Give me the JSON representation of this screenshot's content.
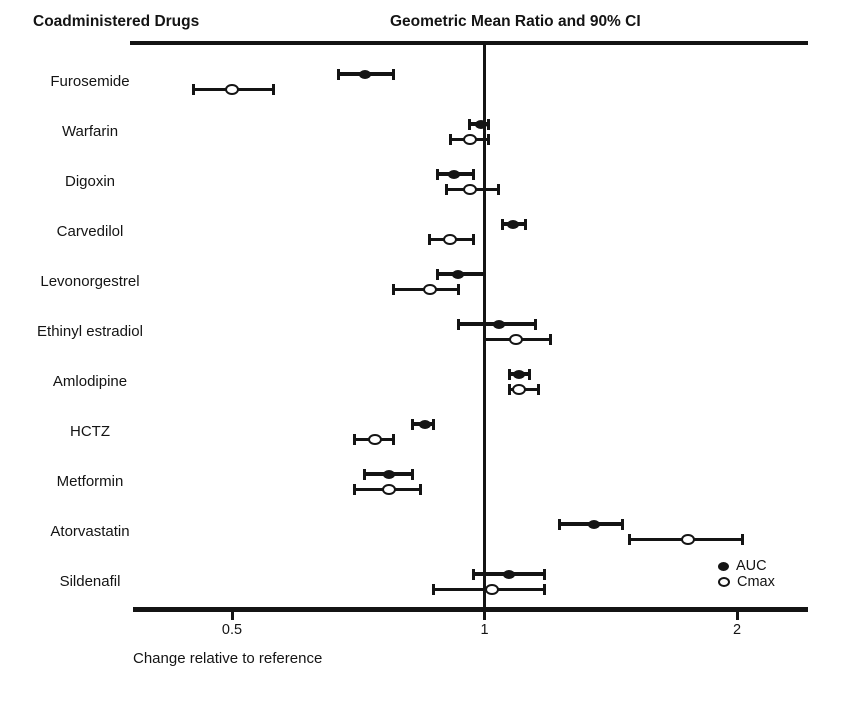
{
  "chart_data": {
    "type": "forest",
    "title_left": "Coadministered Drugs",
    "title_right": "Geometric Mean Ratio and 90% CI",
    "xlabel": "Change relative to reference",
    "x_scale": "log2",
    "x_reference_line": 1,
    "x_ticks": [
      {
        "value": 0.5,
        "label": "0.5"
      },
      {
        "value": 1,
        "label": "1"
      },
      {
        "value": 2,
        "label": "2"
      }
    ],
    "xlim": [
      0.38,
      2.25
    ],
    "grid": false,
    "legend_position": "bottom-right",
    "legend": [
      {
        "label": "AUC",
        "marker": "filled-circle"
      },
      {
        "label": "Cmax",
        "marker": "open-circle"
      }
    ],
    "line_color": "#141414",
    "background_color": "#ffffff",
    "rows": [
      {
        "drug": "Furosemide",
        "auc": {
          "gmr": 0.72,
          "lo": 0.67,
          "hi": 0.78
        },
        "cmax": {
          "gmr": 0.5,
          "lo": 0.45,
          "hi": 0.56
        }
      },
      {
        "drug": "Warfarin",
        "auc": {
          "gmr": 0.99,
          "lo": 0.96,
          "hi": 1.01
        },
        "cmax": {
          "gmr": 0.96,
          "lo": 0.91,
          "hi": 1.01
        }
      },
      {
        "drug": "Digoxin",
        "auc": {
          "gmr": 0.92,
          "lo": 0.88,
          "hi": 0.97
        },
        "cmax": {
          "gmr": 0.96,
          "lo": 0.9,
          "hi": 1.04
        }
      },
      {
        "drug": "Carvedilol",
        "auc": {
          "gmr": 1.08,
          "lo": 1.05,
          "hi": 1.12
        },
        "cmax": {
          "gmr": 0.91,
          "lo": 0.86,
          "hi": 0.97
        }
      },
      {
        "drug": "Levonorgestrel",
        "auc": {
          "gmr": 0.93,
          "lo": 0.88,
          "hi": 1.0
        },
        "cmax": {
          "gmr": 0.86,
          "lo": 0.78,
          "hi": 0.93
        }
      },
      {
        "drug": "Ethinyl estradiol",
        "auc": {
          "gmr": 1.04,
          "lo": 0.93,
          "hi": 1.15
        },
        "cmax": {
          "gmr": 1.09,
          "lo": 1.0,
          "hi": 1.2
        }
      },
      {
        "drug": "Amlodipine",
        "auc": {
          "gmr": 1.1,
          "lo": 1.07,
          "hi": 1.13
        },
        "cmax": {
          "gmr": 1.1,
          "lo": 1.07,
          "hi": 1.16
        }
      },
      {
        "drug": "HCTZ",
        "auc": {
          "gmr": 0.85,
          "lo": 0.82,
          "hi": 0.87
        },
        "cmax": {
          "gmr": 0.74,
          "lo": 0.7,
          "hi": 0.78
        }
      },
      {
        "drug": "Metformin",
        "auc": {
          "gmr": 0.77,
          "lo": 0.72,
          "hi": 0.82
        },
        "cmax": {
          "gmr": 0.77,
          "lo": 0.7,
          "hi": 0.84
        }
      },
      {
        "drug": "Atorvastatin",
        "auc": {
          "gmr": 1.35,
          "lo": 1.23,
          "hi": 1.46
        },
        "cmax": {
          "gmr": 1.75,
          "lo": 1.49,
          "hi": 2.03
        }
      },
      {
        "drug": "Sildenafil",
        "auc": {
          "gmr": 1.07,
          "lo": 0.97,
          "hi": 1.18
        },
        "cmax": {
          "gmr": 1.02,
          "lo": 0.87,
          "hi": 1.18
        }
      }
    ]
  }
}
